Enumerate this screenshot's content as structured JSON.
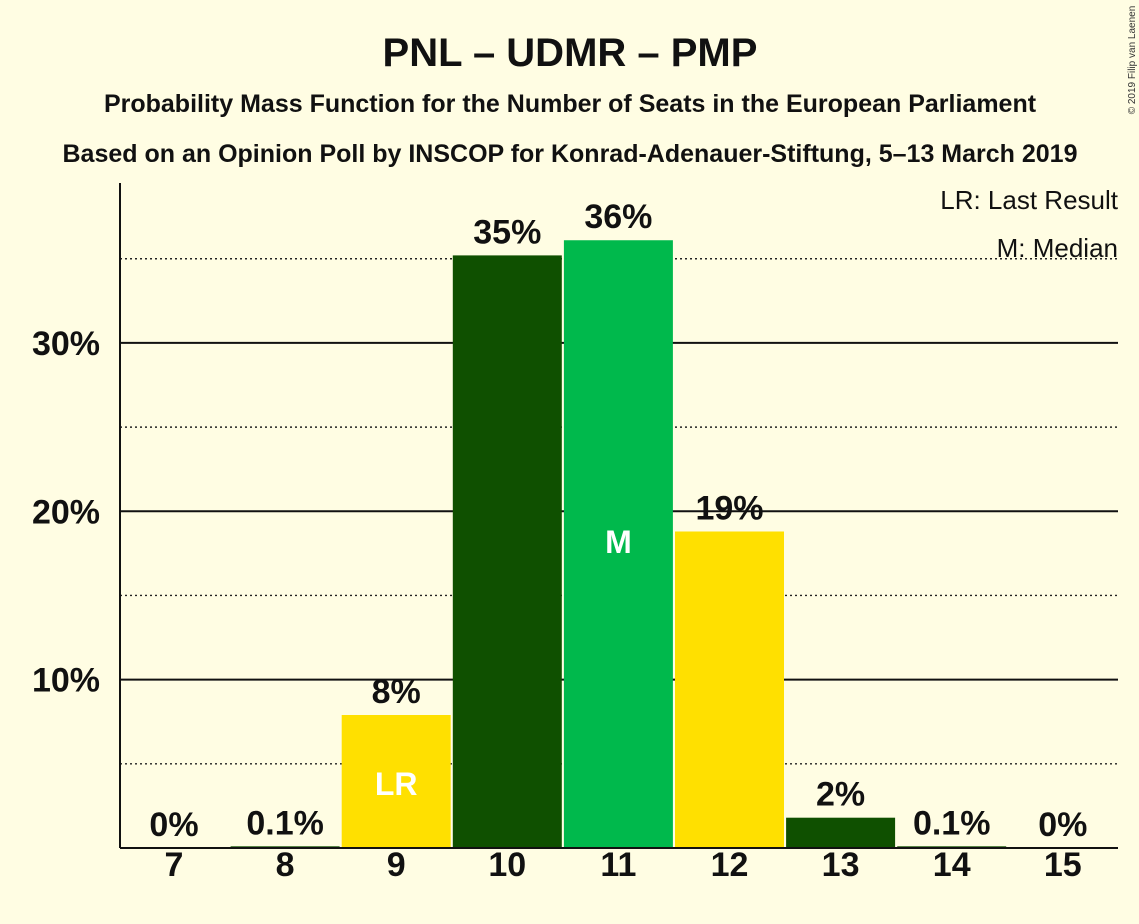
{
  "header": {
    "title": "PNL – UDMR – PMP",
    "subtitle1": "Probability Mass Function for the Number of Seats in the European Parliament",
    "subtitle2": "Based on an Opinion Poll by INSCOP for Konrad-Adenauer-Stiftung, 5–13 March 2019"
  },
  "legend": {
    "lr": "LR: Last Result",
    "median": "M: Median"
  },
  "copyright": "© 2019 Filip van Laenen",
  "colors": {
    "background": "#FFFDE3",
    "dark_green": "#0F5000",
    "bright_green": "#00B94C",
    "yellow": "#FFE000"
  },
  "chart_data": {
    "type": "bar",
    "title": "PNL – UDMR – PMP",
    "categories": [
      "7",
      "8",
      "9",
      "10",
      "11",
      "12",
      "13",
      "14",
      "15"
    ],
    "values": [
      0,
      0.1,
      7.9,
      35.2,
      36.1,
      18.8,
      1.8,
      0.1,
      0
    ],
    "data_labels": [
      "0%",
      "0.1%",
      "8%",
      "35%",
      "36%",
      "19%",
      "2%",
      "0.1%",
      "0%"
    ],
    "bar_colors": [
      "dark_green",
      "dark_green",
      "yellow",
      "dark_green",
      "bright_green",
      "yellow",
      "dark_green",
      "dark_green",
      "dark_green"
    ],
    "bar_markers": {
      "9": "LR",
      "11": "M"
    },
    "yticks": [
      {
        "value": 10,
        "label": "10%"
      },
      {
        "value": 20,
        "label": "20%"
      },
      {
        "value": 30,
        "label": "30%"
      }
    ],
    "minor_gridlines": [
      5,
      15,
      25,
      35
    ],
    "ylim": [
      0,
      39.5
    ],
    "xlabel": "",
    "ylabel": "",
    "legend_position": "top-right",
    "grid": true
  }
}
